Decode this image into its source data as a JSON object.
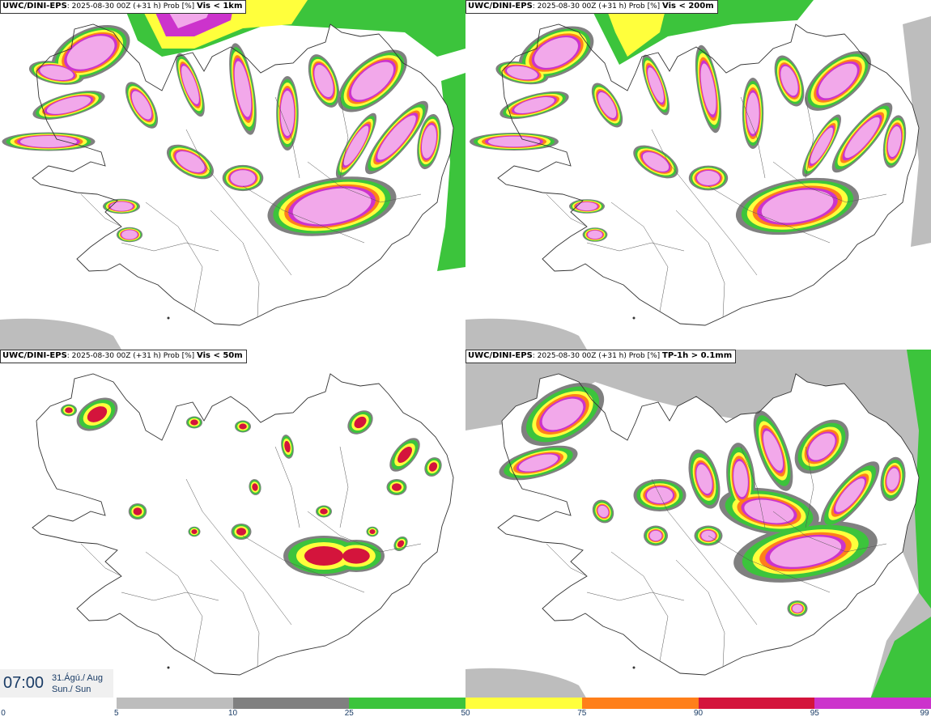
{
  "panels": [
    {
      "model": "UWC/DINI-EPS",
      "run": ": 2025-08-30 00Z (+31 h) Prob [%]",
      "threshold": "Vis < 1km",
      "coverage": "high"
    },
    {
      "model": "UWC/DINI-EPS",
      "run": ": 2025-08-30 00Z (+31 h) Prob [%]",
      "threshold": "Vis < 200m",
      "coverage": "high"
    },
    {
      "model": "UWC/DINI-EPS",
      "run": ": 2025-08-30 00Z (+31 h) Prob [%]",
      "threshold": "Vis < 50m",
      "coverage": "low"
    },
    {
      "model": "UWC/DINI-EPS",
      "run": ": 2025-08-30 00Z (+31 h) Prob [%]",
      "threshold": "TP-1h > 0.1mm",
      "coverage": "medium"
    }
  ],
  "valid_time": {
    "time": "07:00",
    "date": "31.Ágú./ Aug",
    "day": "Sun./ Sun"
  },
  "legend": {
    "ticks": [
      "0",
      "5",
      "10",
      "25",
      "50",
      "75",
      "90",
      "95",
      "99"
    ],
    "colors": [
      "#ffffff",
      "#bdbdbd",
      "#808080",
      "#3cc43c",
      "#ffff3c",
      "#ff7f1a",
      "#d4143c",
      "#cc33cc",
      "#f2a8ea"
    ]
  }
}
